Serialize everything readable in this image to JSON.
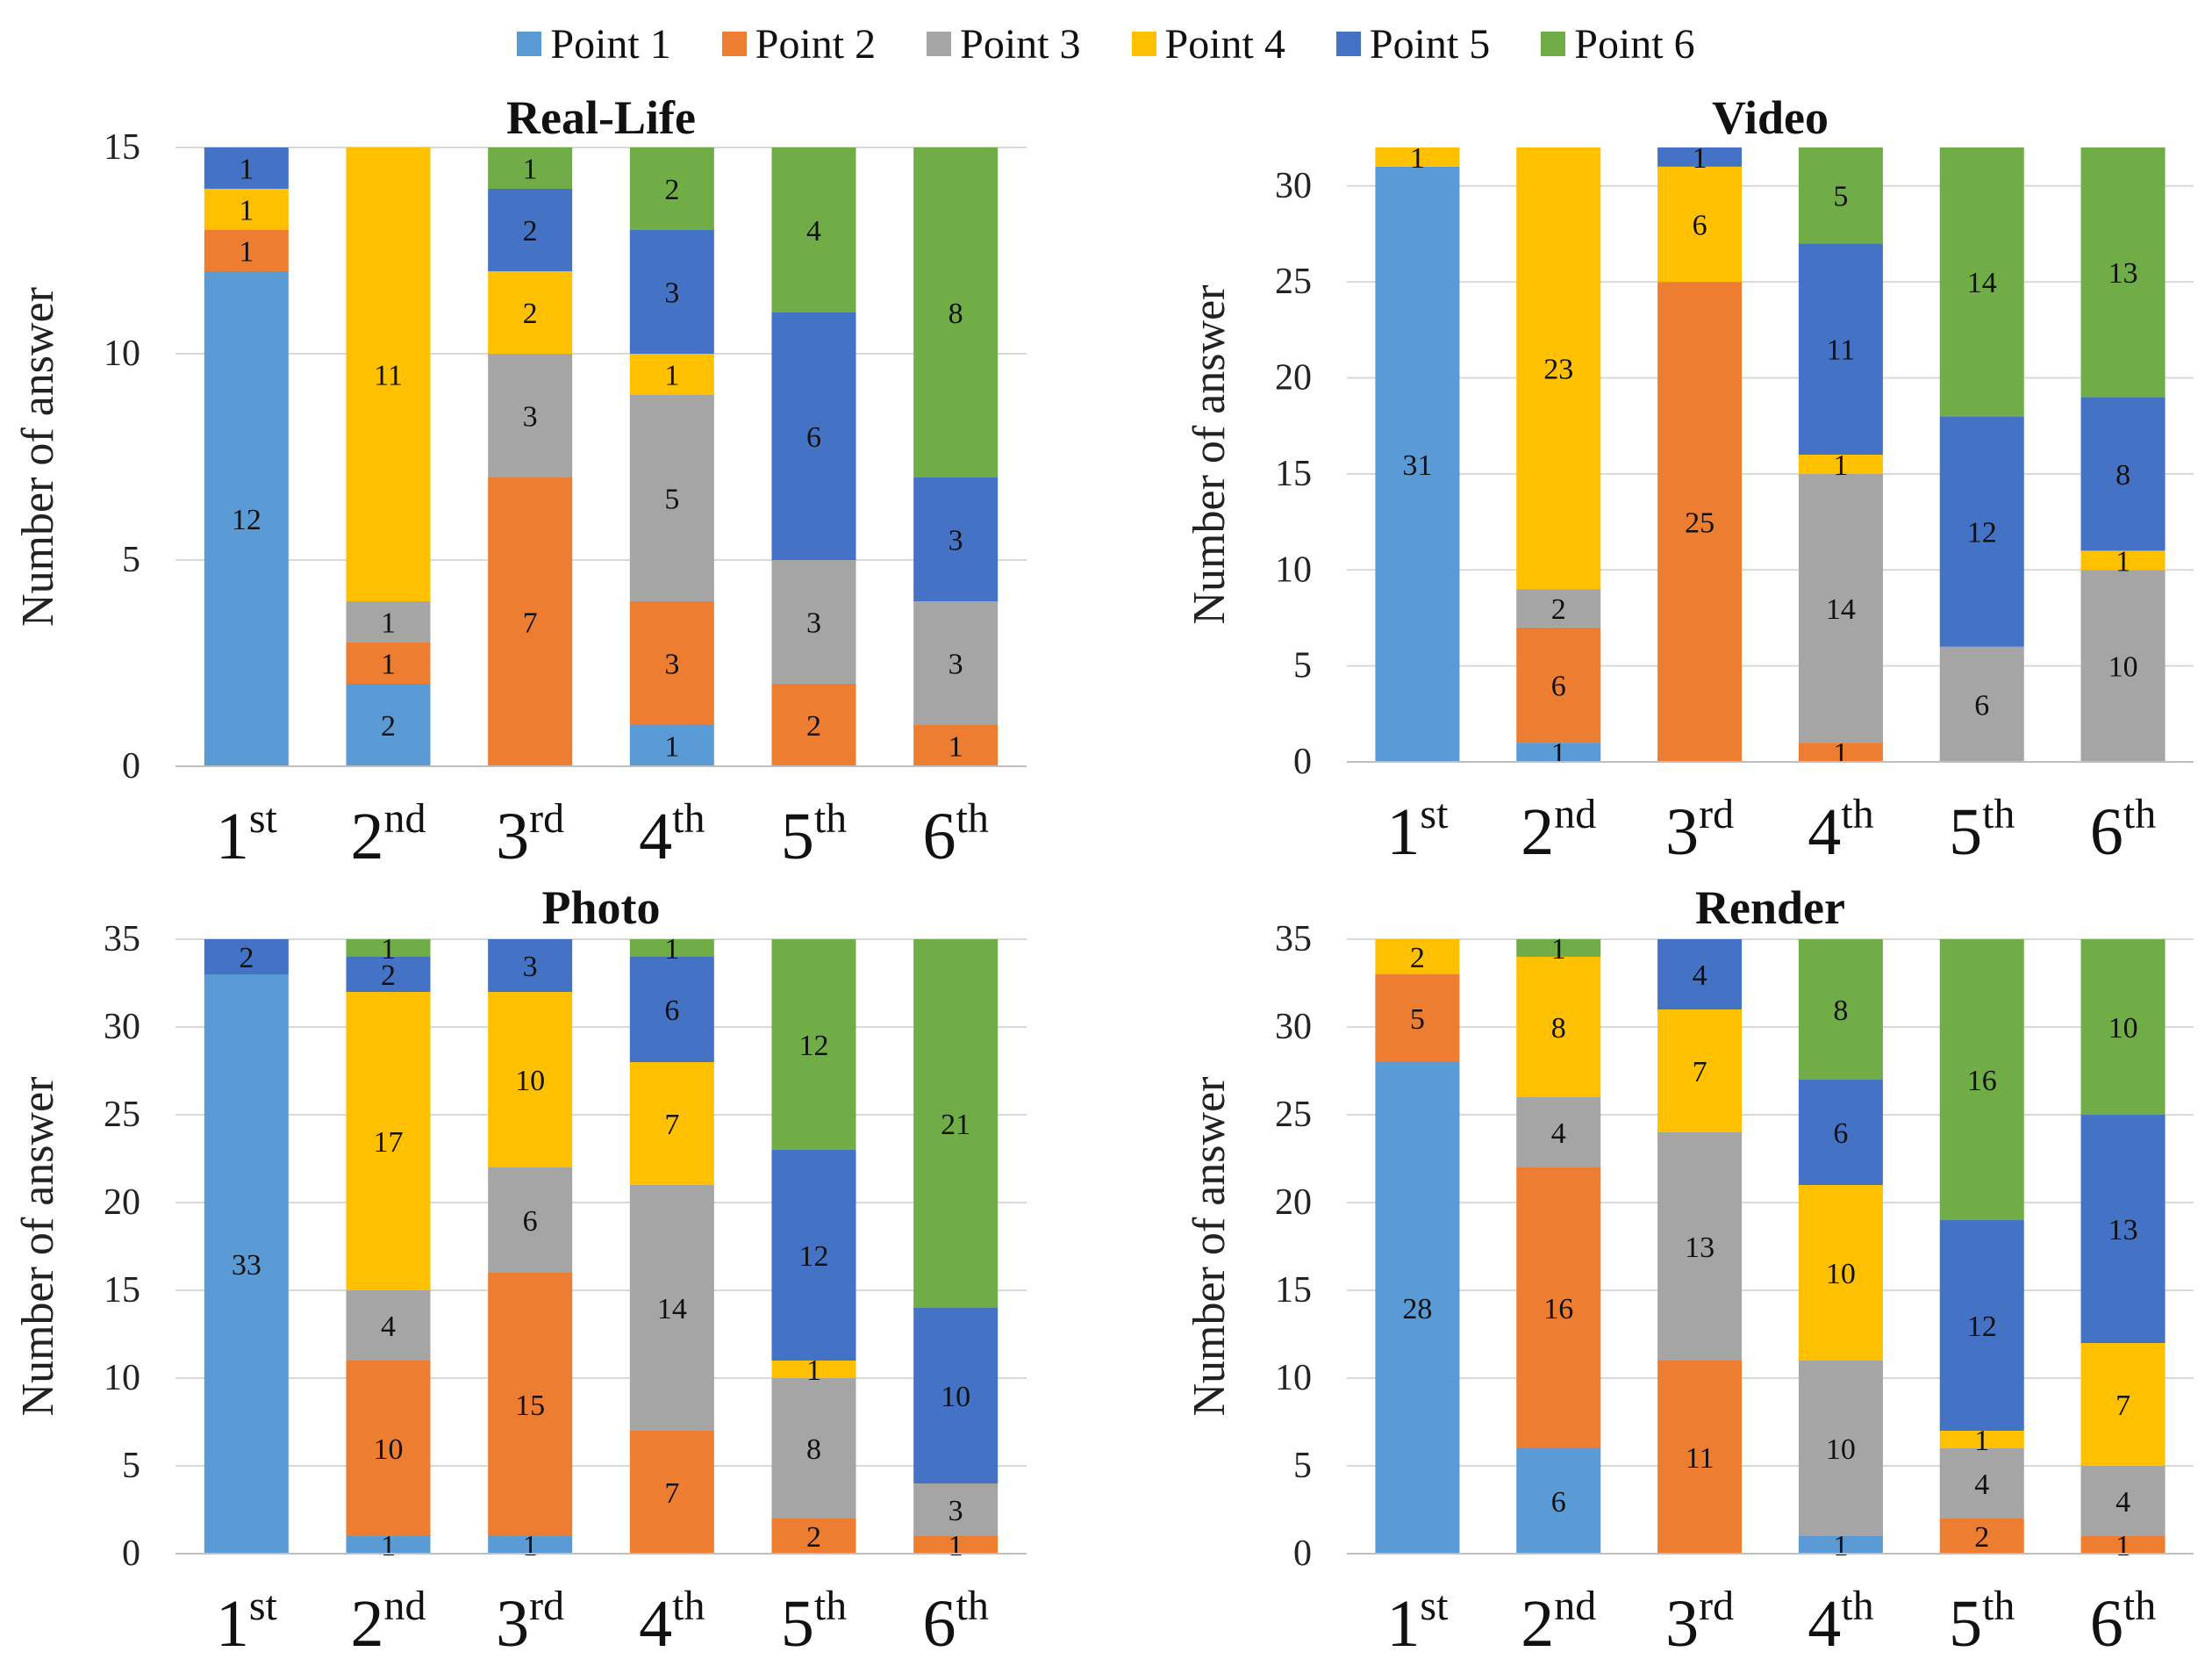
{
  "legend": [
    {
      "name": "Point 1",
      "color": "#5B9BD5"
    },
    {
      "name": "Point 2",
      "color": "#ED7D31"
    },
    {
      "name": "Point 3",
      "color": "#A5A5A5"
    },
    {
      "name": "Point 4",
      "color": "#FFC000"
    },
    {
      "name": "Point 5",
      "color": "#4472C4"
    },
    {
      "name": "Point 6",
      "color": "#70AD47"
    }
  ],
  "chart_data": [
    {
      "type": "bar",
      "stacked": true,
      "title": "Real-Life",
      "ylabel": "Number of answer",
      "xlabel": "",
      "ylim": [
        0,
        15
      ],
      "yticks": [
        0,
        5,
        10,
        15
      ],
      "categories": [
        {
          "base": "1",
          "sup": "st"
        },
        {
          "base": "2",
          "sup": "nd"
        },
        {
          "base": "3",
          "sup": "rd"
        },
        {
          "base": "4",
          "sup": "th"
        },
        {
          "base": "5",
          "sup": "th"
        },
        {
          "base": "6",
          "sup": "th"
        }
      ],
      "series": [
        {
          "name": "Point 1",
          "values": [
            12,
            2,
            0,
            1,
            0,
            0
          ]
        },
        {
          "name": "Point 2",
          "values": [
            1,
            1,
            7,
            3,
            2,
            1
          ]
        },
        {
          "name": "Point 3",
          "values": [
            0,
            1,
            3,
            5,
            3,
            3
          ]
        },
        {
          "name": "Point 4",
          "values": [
            1,
            11,
            2,
            1,
            0,
            0
          ]
        },
        {
          "name": "Point 5",
          "values": [
            1,
            0,
            2,
            3,
            6,
            3
          ]
        },
        {
          "name": "Point 6",
          "values": [
            0,
            0,
            1,
            2,
            4,
            8
          ]
        }
      ]
    },
    {
      "type": "bar",
      "stacked": true,
      "title": "Video",
      "ylabel": "Number of answer",
      "xlabel": "",
      "ylim": [
        0,
        32
      ],
      "yticks": [
        0,
        5,
        10,
        15,
        20,
        25,
        30
      ],
      "categories": [
        {
          "base": "1",
          "sup": "st"
        },
        {
          "base": "2",
          "sup": "nd"
        },
        {
          "base": "3",
          "sup": "rd"
        },
        {
          "base": "4",
          "sup": "th"
        },
        {
          "base": "5",
          "sup": "th"
        },
        {
          "base": "6",
          "sup": "th"
        }
      ],
      "series": [
        {
          "name": "Point 1",
          "values": [
            31,
            1,
            0,
            0,
            0,
            0
          ]
        },
        {
          "name": "Point 2",
          "values": [
            0,
            6,
            25,
            1,
            0,
            0
          ]
        },
        {
          "name": "Point 3",
          "values": [
            0,
            2,
            0,
            14,
            6,
            10
          ]
        },
        {
          "name": "Point 4",
          "values": [
            1,
            23,
            6,
            1,
            0,
            1
          ]
        },
        {
          "name": "Point 5",
          "values": [
            0,
            0,
            1,
            11,
            12,
            8
          ]
        },
        {
          "name": "Point 6",
          "values": [
            0,
            0,
            0,
            5,
            14,
            13
          ]
        }
      ]
    },
    {
      "type": "bar",
      "stacked": true,
      "title": "Photo",
      "ylabel": "Number of answer",
      "xlabel": "",
      "ylim": [
        0,
        35
      ],
      "yticks": [
        0,
        5,
        10,
        15,
        20,
        25,
        30,
        35
      ],
      "categories": [
        {
          "base": "1",
          "sup": "st"
        },
        {
          "base": "2",
          "sup": "nd"
        },
        {
          "base": "3",
          "sup": "rd"
        },
        {
          "base": "4",
          "sup": "th"
        },
        {
          "base": "5",
          "sup": "th"
        },
        {
          "base": "6",
          "sup": "th"
        }
      ],
      "series": [
        {
          "name": "Point 1",
          "values": [
            33,
            1,
            1,
            0,
            0,
            0
          ]
        },
        {
          "name": "Point 2",
          "values": [
            0,
            10,
            15,
            7,
            2,
            1
          ]
        },
        {
          "name": "Point 3",
          "values": [
            0,
            4,
            6,
            14,
            8,
            3
          ]
        },
        {
          "name": "Point 4",
          "values": [
            0,
            17,
            10,
            7,
            1,
            0
          ]
        },
        {
          "name": "Point 5",
          "values": [
            2,
            2,
            3,
            6,
            12,
            10
          ]
        },
        {
          "name": "Point 6",
          "values": [
            0,
            1,
            0,
            1,
            12,
            21
          ]
        }
      ]
    },
    {
      "type": "bar",
      "stacked": true,
      "title": "Render",
      "ylabel": "Number of answer",
      "xlabel": "",
      "ylim": [
        0,
        35
      ],
      "yticks": [
        0,
        5,
        10,
        15,
        20,
        25,
        30,
        35
      ],
      "categories": [
        {
          "base": "1",
          "sup": "st"
        },
        {
          "base": "2",
          "sup": "nd"
        },
        {
          "base": "3",
          "sup": "rd"
        },
        {
          "base": "4",
          "sup": "th"
        },
        {
          "base": "5",
          "sup": "th"
        },
        {
          "base": "6",
          "sup": "th"
        }
      ],
      "series": [
        {
          "name": "Point 1",
          "values": [
            28,
            6,
            0,
            1,
            0,
            0
          ]
        },
        {
          "name": "Point 2",
          "values": [
            5,
            16,
            11,
            0,
            2,
            1
          ]
        },
        {
          "name": "Point 3",
          "values": [
            0,
            4,
            13,
            10,
            4,
            4
          ]
        },
        {
          "name": "Point 4",
          "values": [
            2,
            8,
            7,
            10,
            1,
            7
          ]
        },
        {
          "name": "Point 5",
          "values": [
            0,
            0,
            4,
            6,
            12,
            13
          ]
        },
        {
          "name": "Point 6",
          "values": [
            0,
            1,
            0,
            8,
            16,
            10
          ]
        }
      ]
    }
  ]
}
